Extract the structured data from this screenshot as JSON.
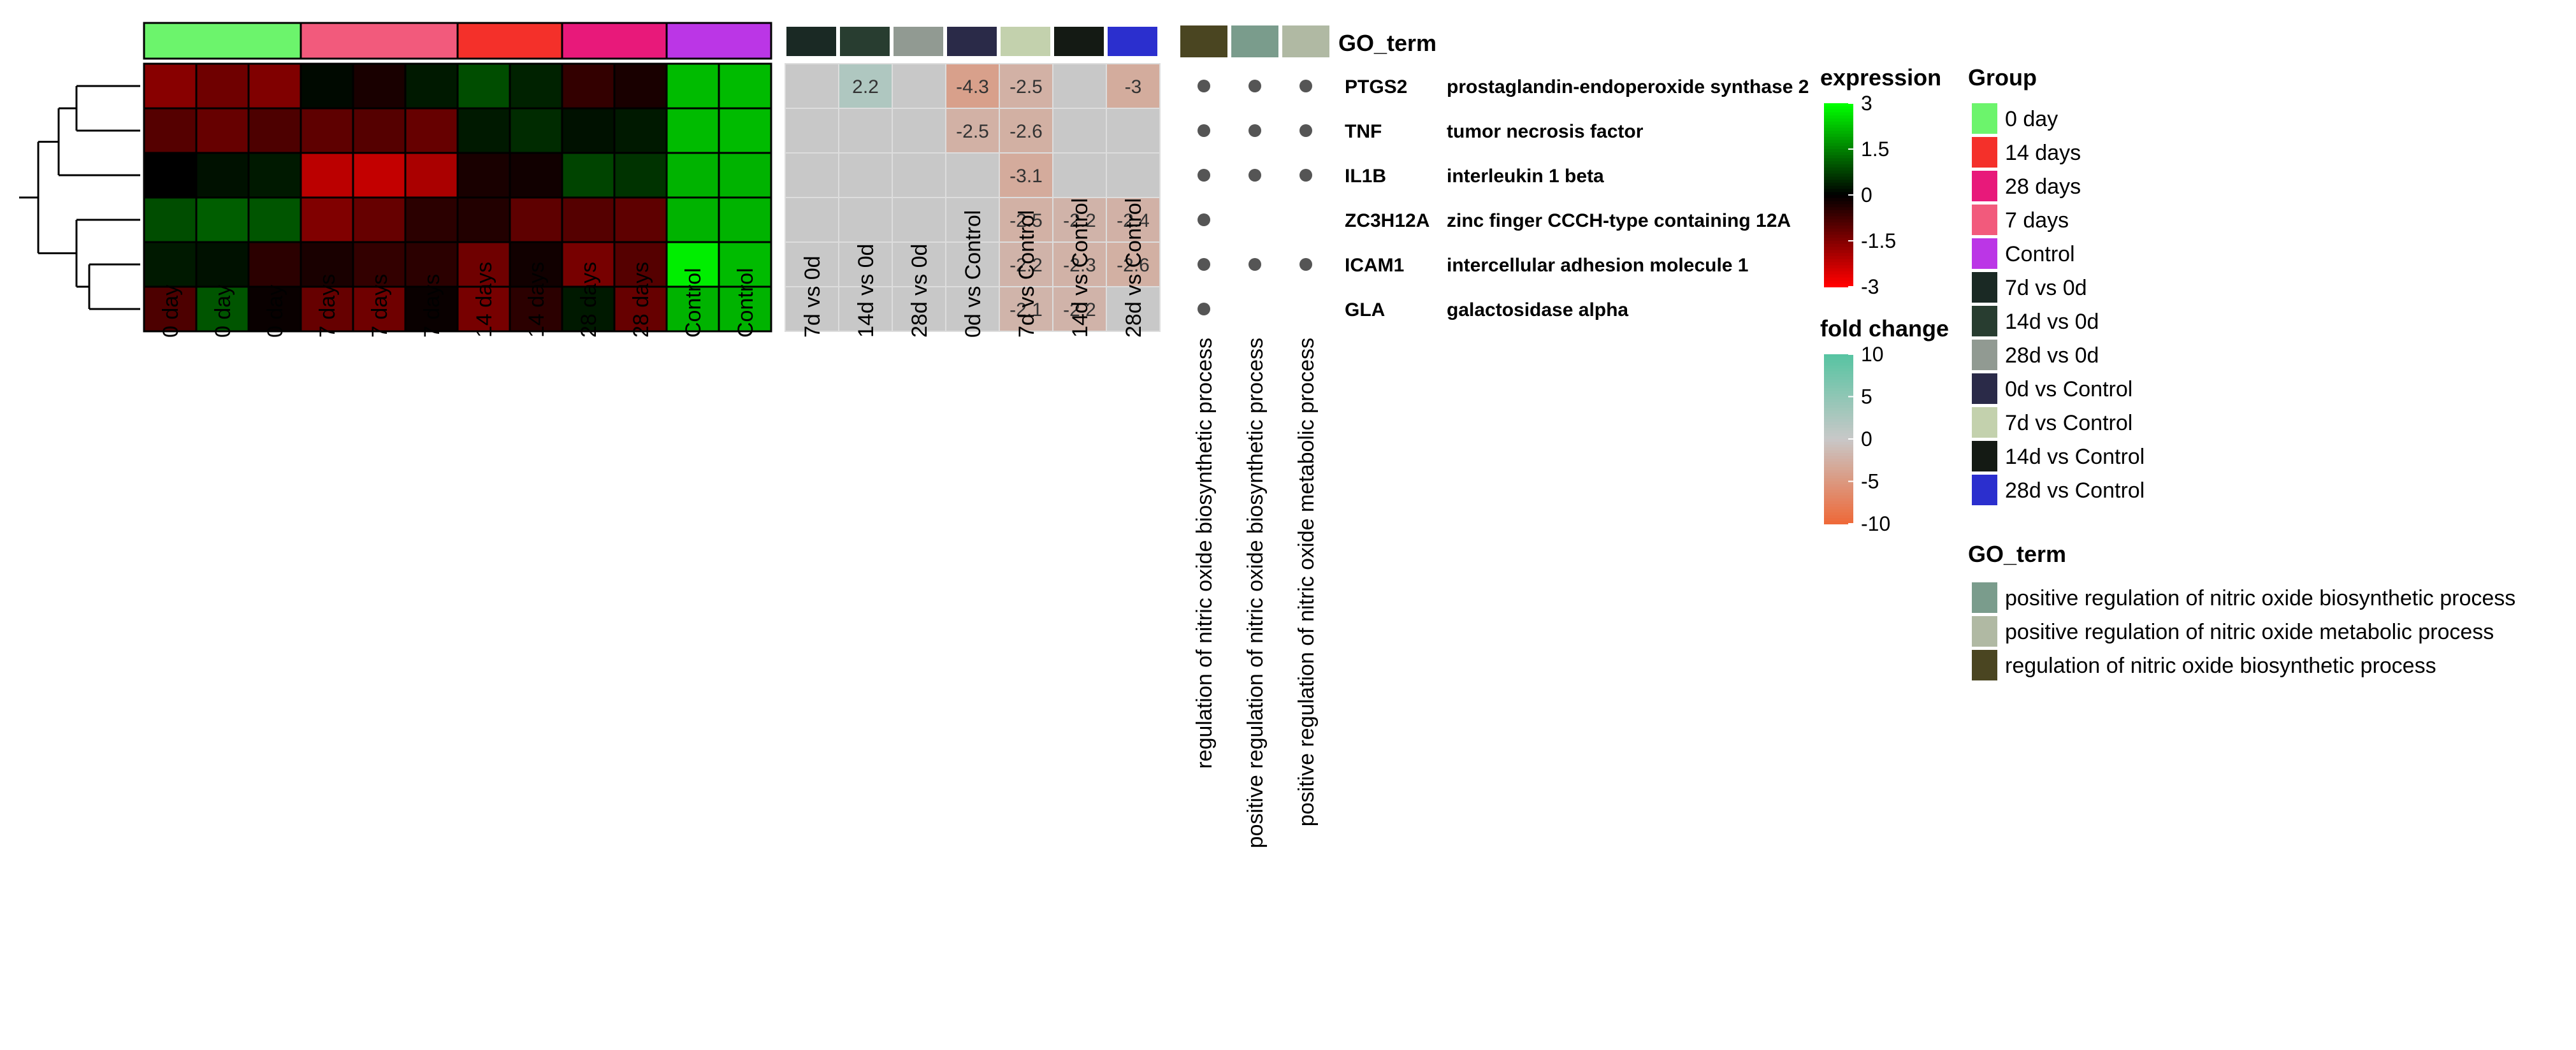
{
  "chart_data": {
    "type": "heatmap",
    "samples": [
      "0 day",
      "0 day",
      "0 day",
      "7 days",
      "7 days",
      "7 days",
      "14 days",
      "14 days",
      "28 days",
      "28 days",
      "Control",
      "Control"
    ],
    "sample_groups": [
      "0 day",
      "0 day",
      "0 day",
      "7 days",
      "7 days",
      "7 days",
      "14 days",
      "14 days",
      "28 days",
      "28 days",
      "Control",
      "Control"
    ],
    "genes": [
      {
        "symbol": "PTGS2",
        "name": "prostaglandin-endoperoxide synthase 2"
      },
      {
        "symbol": "TNF",
        "name": "tumor necrosis factor"
      },
      {
        "symbol": "IL1B",
        "name": "interleukin 1 beta"
      },
      {
        "symbol": "ZC3H12A",
        "name": "zinc finger CCCH-type containing 12A"
      },
      {
        "symbol": "ICAM1",
        "name": "intercellular adhesion molecule 1"
      },
      {
        "symbol": "GLA",
        "name": "galactosidase alpha"
      }
    ],
    "expression": [
      [
        -1.6,
        -1.3,
        -1.5,
        0.1,
        -0.3,
        0.3,
        0.9,
        0.4,
        -0.6,
        -0.3,
        2.2,
        2.2
      ],
      [
        -1.0,
        -1.2,
        -0.9,
        -1.1,
        -1.0,
        -1.2,
        0.3,
        0.5,
        0.2,
        0.3,
        2.2,
        2.2
      ],
      [
        0.0,
        0.2,
        0.3,
        -2.2,
        -2.3,
        -2.0,
        -0.3,
        -0.2,
        0.8,
        0.6,
        2.1,
        2.1
      ],
      [
        0.9,
        1.1,
        1.0,
        -1.5,
        -1.2,
        -0.5,
        -0.4,
        -1.1,
        -1.0,
        -1.1,
        2.1,
        2.1
      ],
      [
        0.3,
        0.2,
        -0.5,
        -0.3,
        -0.6,
        -0.5,
        -1.3,
        -0.2,
        -1.4,
        -1.0,
        2.8,
        2.2
      ],
      [
        -0.9,
        1.0,
        -0.1,
        -1.2,
        -1.3,
        -0.1,
        -1.4,
        -0.5,
        0.3,
        -1.2,
        2.1,
        2.1
      ]
    ],
    "comparisons": [
      "7d vs 0d",
      "14d vs 0d",
      "28d vs 0d",
      "0d vs Control",
      "7d vs Control",
      "14d vs Control",
      "28d vs Control"
    ],
    "fold_change": [
      [
        null,
        2.2,
        null,
        -4.3,
        -2.5,
        null,
        -3
      ],
      [
        null,
        null,
        null,
        -2.5,
        -2.6,
        null,
        null
      ],
      [
        null,
        null,
        null,
        null,
        -3.1,
        null,
        null
      ],
      [
        null,
        null,
        null,
        null,
        -2.5,
        -2.2,
        -2.4
      ],
      [
        null,
        null,
        null,
        null,
        -2.2,
        -2.3,
        -2.6
      ],
      [
        null,
        null,
        null,
        null,
        -2.1,
        -2.2,
        null
      ]
    ],
    "go_terms": [
      "regulation of nitric oxide biosynthetic process",
      "positive regulation of nitric oxide biosynthetic process",
      "positive regulation of nitric oxide metabolic process"
    ],
    "go_membership": [
      [
        true,
        true,
        true
      ],
      [
        true,
        true,
        true
      ],
      [
        true,
        true,
        true
      ],
      [
        true,
        false,
        false
      ],
      [
        true,
        true,
        true
      ],
      [
        true,
        false,
        false
      ]
    ],
    "expression_legend": {
      "title": "expression",
      "ticks": [
        3,
        1.5,
        0,
        -1.5,
        -3
      ],
      "range": [
        -3,
        3
      ],
      "colors": {
        "low": "#ff0000",
        "mid": "#000000",
        "high": "#00ff00"
      }
    },
    "fold_change_legend": {
      "title": "fold change",
      "ticks": [
        10,
        5,
        0,
        -5,
        -10
      ],
      "range": [
        -10,
        10
      ],
      "colors": {
        "low": "#ee6a3a",
        "mid": "#c8c8c8",
        "high": "#58c4a2"
      }
    },
    "group_legend": {
      "title": "Group",
      "items": [
        {
          "label": "0 day",
          "color": "#6cf46c"
        },
        {
          "label": "14 days",
          "color": "#f4302a"
        },
        {
          "label": "28 days",
          "color": "#e8197a"
        },
        {
          "label": "7 days",
          "color": "#f25a7c"
        },
        {
          "label": "Control",
          "color": "#bb36e6"
        },
        {
          "label": "7d vs 0d",
          "color": "#1a2924"
        },
        {
          "label": "14d vs 0d",
          "color": "#283d30"
        },
        {
          "label": "28d vs 0d",
          "color": "#919a92"
        },
        {
          "label": "0d vs Control",
          "color": "#2a2a48"
        },
        {
          "label": "7d vs Control",
          "color": "#c3d1ad"
        },
        {
          "label": "14d vs Control",
          "color": "#141a14"
        },
        {
          "label": "28d vs Control",
          "color": "#2b2fce"
        }
      ]
    },
    "go_legend": {
      "title": "GO_term",
      "items": [
        {
          "label": "positive regulation of nitric oxide biosynthetic process",
          "color": "#7a9c8c"
        },
        {
          "label": "positive regulation of nitric oxide metabolic process",
          "color": "#b0b9a3"
        },
        {
          "label": "regulation of nitric oxide biosynthetic process",
          "color": "#4a4521"
        }
      ]
    },
    "go_header_label": "GO_term",
    "go_column_colors": [
      "#4a4521",
      "#7a9c8c",
      "#b0b9a3"
    ],
    "colors": {
      "na_cell": "#c8c8c8",
      "dot": "#555555",
      "cell_border": "#000000"
    }
  }
}
